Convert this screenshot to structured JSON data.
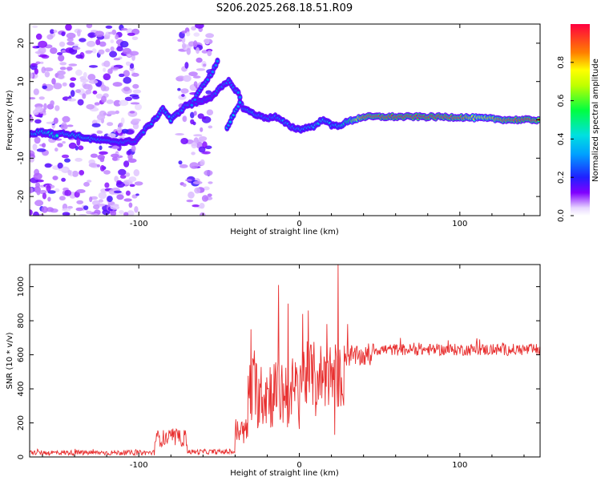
{
  "figure": {
    "title": "S206.2025.268.18.51.R09"
  },
  "chart_data": [
    {
      "type": "heatmap",
      "title": "S206.2025.268.18.51.R09",
      "xlabel": "Height of straight line (km)",
      "ylabel": "Frequency (Hz)",
      "xlim": [
        -168,
        150
      ],
      "ylim": [
        -25,
        25
      ],
      "xticks": [
        -100,
        0,
        100
      ],
      "yticks": [
        -20,
        -10,
        0,
        10,
        20
      ],
      "colorbar": {
        "label": "Normalized spectral amplitude",
        "range": [
          0,
          1
        ],
        "ticks": [
          0.0,
          0.2,
          0.4,
          0.6,
          0.8
        ],
        "tick_labels": [
          "0.0",
          "0.2",
          "0.4",
          "0.6",
          "0.8"
        ]
      },
      "ridge": [
        {
          "x": -160,
          "f": -3.5,
          "a": 0.25
        },
        {
          "x": -150,
          "f": -3.5,
          "a": 0.3
        },
        {
          "x": -140,
          "f": -4,
          "a": 0.4
        },
        {
          "x": -130,
          "f": -5,
          "a": 0.35
        },
        {
          "x": -120,
          "f": -5.5,
          "a": 0.3
        },
        {
          "x": -110,
          "f": -5.8,
          "a": 0.3
        },
        {
          "x": -102,
          "f": -5.5,
          "a": 0.25
        },
        {
          "x": -95,
          "f": -2,
          "a": 0.3
        },
        {
          "x": -90,
          "f": 0,
          "a": 0.3
        },
        {
          "x": -85,
          "f": 3,
          "a": 0.3
        },
        {
          "x": -80,
          "f": 0,
          "a": 0.35
        },
        {
          "x": -75,
          "f": 2,
          "a": 0.3
        },
        {
          "x": -70,
          "f": 4,
          "a": 0.3
        },
        {
          "x": -60,
          "f": 5,
          "a": 0.25
        },
        {
          "x": -55,
          "f": 6,
          "a": 0.25
        },
        {
          "x": -50,
          "f": 8,
          "a": 0.3
        },
        {
          "x": -44,
          "f": 10,
          "a": 0.3
        },
        {
          "x": -38,
          "f": 7,
          "a": 0.3
        },
        {
          "x": -35,
          "f": 3,
          "a": 0.3
        },
        {
          "x": -30,
          "f": 2,
          "a": 0.35
        },
        {
          "x": -25,
          "f": 1,
          "a": 0.3
        },
        {
          "x": -20,
          "f": 0.5,
          "a": 0.3
        },
        {
          "x": -15,
          "f": 0.8,
          "a": 0.3
        },
        {
          "x": -10,
          "f": -0.5,
          "a": 0.35
        },
        {
          "x": -5,
          "f": -1.8,
          "a": 0.3
        },
        {
          "x": 0,
          "f": -2.5,
          "a": 0.35
        },
        {
          "x": 5,
          "f": -2,
          "a": 0.35
        },
        {
          "x": 10,
          "f": -1.5,
          "a": 0.4
        },
        {
          "x": 15,
          "f": 0.3,
          "a": 0.4
        },
        {
          "x": 20,
          "f": -1.5,
          "a": 0.35
        },
        {
          "x": 25,
          "f": -1.5,
          "a": 0.4
        },
        {
          "x": 30,
          "f": -0.5,
          "a": 0.5
        },
        {
          "x": 40,
          "f": 0.8,
          "a": 0.9
        },
        {
          "x": 60,
          "f": 0.8,
          "a": 0.95
        },
        {
          "x": 80,
          "f": 0.8,
          "a": 0.95
        },
        {
          "x": 100,
          "f": 0.7,
          "a": 0.9
        },
        {
          "x": 110,
          "f": 0.5,
          "a": 0.75
        },
        {
          "x": 120,
          "f": 0.3,
          "a": 0.8
        },
        {
          "x": 130,
          "f": 0,
          "a": 0.9
        },
        {
          "x": 140,
          "f": 0,
          "a": 0.95
        },
        {
          "x": 150,
          "f": 0,
          "a": 0.9
        }
      ],
      "branches": [
        [
          {
            "x": -67,
            "f": 4,
            "a": 0.3
          },
          {
            "x": -60,
            "f": 9,
            "a": 0.3
          },
          {
            "x": -55,
            "f": 12,
            "a": 0.3
          },
          {
            "x": -50,
            "f": 16,
            "a": 0.3
          }
        ],
        [
          {
            "x": -45,
            "f": -2,
            "a": 0.35
          },
          {
            "x": -40,
            "f": 2,
            "a": 0.35
          },
          {
            "x": -36,
            "f": 5,
            "a": 0.3
          }
        ],
        [
          {
            "x": -170,
            "f": -4,
            "a": 0.3
          },
          {
            "x": -160,
            "f": -3,
            "a": 0.4
          },
          {
            "x": -150,
            "f": -4.5,
            "a": 0.45
          }
        ]
      ],
      "noise_regions": [
        {
          "x": [
            -168,
            -100
          ],
          "f": [
            -25,
            25
          ],
          "density": "high"
        },
        {
          "x": [
            -75,
            -55
          ],
          "f": [
            -25,
            25
          ],
          "density": "medium"
        }
      ]
    },
    {
      "type": "line",
      "xlabel": "Height of straight line (km)",
      "ylabel": "SNR (10 * v/v)",
      "xlim": [
        -168,
        150
      ],
      "ylim": [
        0,
        1130
      ],
      "xticks": [
        -100,
        0,
        100
      ],
      "yticks": [
        0,
        200,
        400,
        600,
        800,
        1000
      ],
      "color": "#e83030",
      "segments": [
        {
          "x0": -168,
          "x1": -90,
          "base": 25,
          "noise": 15
        },
        {
          "x0": -90,
          "x1": -70,
          "base": 110,
          "noise": 50
        },
        {
          "x0": -70,
          "x1": -40,
          "base": 30,
          "noise": 15
        },
        {
          "x0": -40,
          "x1": -32,
          "base": 150,
          "noise": 80
        },
        {
          "x0": -32,
          "x1": 0,
          "base": 380,
          "noise": 220
        },
        {
          "x0": 0,
          "x1": 28,
          "base": 480,
          "noise": 200
        },
        {
          "x0": 28,
          "x1": 45,
          "base": 590,
          "noise": 60
        },
        {
          "x0": 45,
          "x1": 150,
          "base": 630,
          "noise": 35
        }
      ],
      "spikes": [
        {
          "x": -30,
          "y": 750
        },
        {
          "x": -13,
          "y": 1010
        },
        {
          "x": -7,
          "y": 900
        },
        {
          "x": -5,
          "y": 250
        },
        {
          "x": 2,
          "y": 840
        },
        {
          "x": 10,
          "y": 240
        },
        {
          "x": 17,
          "y": 780
        },
        {
          "x": 22,
          "y": 130
        },
        {
          "x": 24,
          "y": 1130
        },
        {
          "x": 30,
          "y": 780
        }
      ]
    }
  ]
}
